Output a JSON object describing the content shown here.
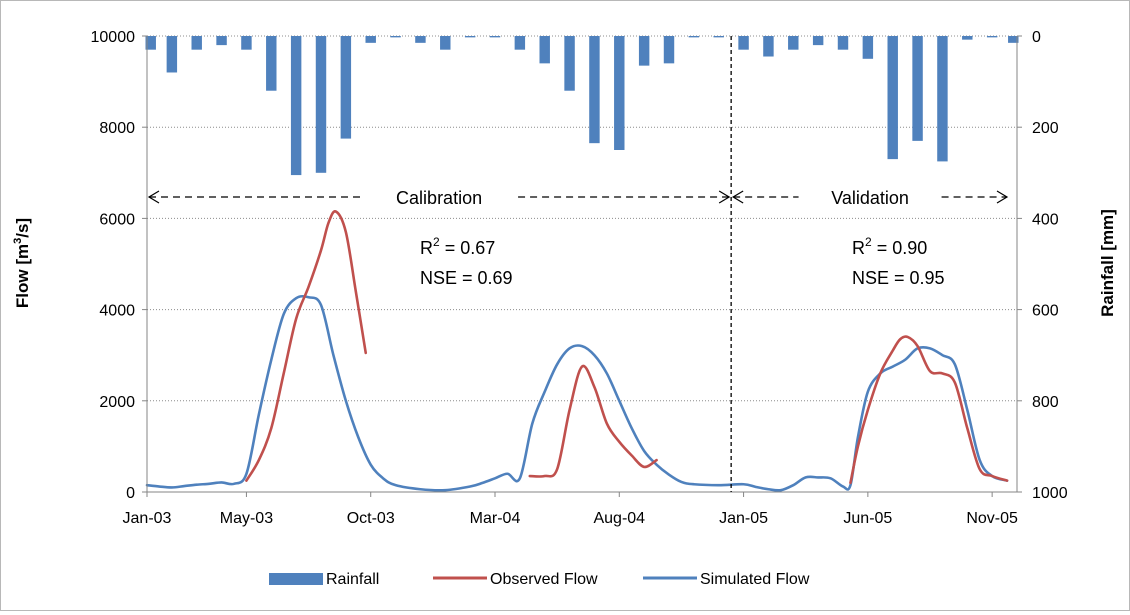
{
  "chart_data": {
    "type": "bar+line",
    "title": "",
    "x_tick_labels": [
      "Jan-03",
      "May-03",
      "Oct-03",
      "Mar-04",
      "Aug-04",
      "Jan-05",
      "Jun-05",
      "Nov-05"
    ],
    "x_tick_months": [
      0,
      4,
      9,
      14,
      19,
      24,
      29,
      34
    ],
    "x_range_months": [
      0,
      35
    ],
    "y_left": {
      "label": "Flow [m",
      "label_sup": "3",
      "label_tail": "/s]",
      "ticks": [
        0,
        2000,
        4000,
        6000,
        8000,
        10000
      ],
      "range": [
        0,
        10000
      ]
    },
    "y_right": {
      "label": "Rainfall [mm]",
      "ticks": [
        0,
        200,
        400,
        600,
        800,
        1000
      ],
      "range": [
        0,
        1000
      ],
      "inverted": true
    },
    "grid": true,
    "legend_position": "bottom",
    "colors": {
      "rainfall": "#4f81bd",
      "observed": "#c0504d",
      "simulated": "#4f81bd"
    },
    "series": [
      {
        "name": "Rainfall",
        "kind": "bar",
        "axis": "right",
        "months": [
          0,
          1,
          2,
          3,
          4,
          5,
          6,
          7,
          8,
          9,
          10,
          11,
          12,
          13,
          14,
          15,
          16,
          17,
          18,
          19,
          20,
          21,
          22,
          23,
          24,
          25,
          26,
          27,
          28,
          29,
          30,
          31,
          32,
          33,
          34,
          35
        ],
        "values": [
          30,
          80,
          30,
          20,
          30,
          120,
          305,
          300,
          225,
          15,
          3,
          15,
          30,
          3,
          3,
          30,
          60,
          120,
          235,
          250,
          65,
          60,
          3,
          3,
          30,
          45,
          30,
          20,
          30,
          50,
          270,
          230,
          275,
          8,
          3,
          15
        ]
      },
      {
        "name": "Observed Flow",
        "kind": "line",
        "axis": "left",
        "segments": [
          {
            "x": [
              4.0,
              4.5,
              5.0,
              5.5,
              6.0,
              6.5,
              7.0,
              7.3,
              7.6,
              8.0,
              8.4,
              8.8
            ],
            "y": [
              250,
              700,
              1400,
              2600,
              3800,
              4500,
              5300,
              5900,
              6150,
              5700,
              4400,
              3050
            ]
          },
          {
            "x": [
              15.4,
              16.0,
              16.5,
              17.0,
              17.5,
              18.0,
              18.5,
              19.0,
              19.5,
              20.0,
              20.5
            ],
            "y": [
              350,
              350,
              500,
              1800,
              2750,
              2300,
              1500,
              1100,
              800,
              550,
              700
            ]
          },
          {
            "x": [
              28.3,
              28.6,
              29.0,
              29.5,
              30.0,
              30.3,
              30.6,
              31.0,
              31.5,
              32.0,
              32.5,
              33.0,
              33.5,
              34.0,
              34.6
            ],
            "y": [
              200,
              1000,
              1800,
              2600,
              3100,
              3350,
              3400,
              3200,
              2650,
              2600,
              2400,
              1400,
              500,
              350,
              250
            ]
          }
        ]
      },
      {
        "name": "Simulated Flow",
        "kind": "line",
        "axis": "left",
        "segments": [
          {
            "x": [
              0,
              0.5,
              1,
              1.5,
              2,
              2.5,
              3,
              3.5,
              4.0,
              4.5,
              5.0,
              5.5,
              6.0,
              6.5,
              7.0,
              7.5,
              8.0,
              8.5,
              9.0,
              9.5,
              10,
              11,
              12,
              13,
              13.5,
              14,
              14.5,
              15,
              15.5,
              16,
              16.5,
              17,
              17.5,
              18,
              18.5,
              19,
              19.5,
              20,
              20.5,
              21,
              21.5,
              22,
              23,
              24,
              24.5,
              25,
              25.5,
              26,
              26.5,
              27,
              27.5,
              28,
              28.3,
              28.6,
              29.0,
              29.5,
              30,
              30.5,
              31,
              31.5,
              32,
              32.5,
              33,
              33.5,
              34,
              34.6
            ],
            "y": [
              150,
              120,
              100,
              130,
              160,
              180,
              210,
              180,
              400,
              1700,
              2900,
              3900,
              4250,
              4270,
              4100,
              3000,
              2000,
              1200,
              600,
              300,
              150,
              60,
              40,
              120,
              200,
              300,
              400,
              300,
              1500,
              2200,
              2800,
              3150,
              3200,
              3000,
              2600,
              2000,
              1400,
              900,
              600,
              380,
              220,
              170,
              150,
              170,
              110,
              60,
              40,
              150,
              320,
              320,
              300,
              120,
              150,
              1200,
              2200,
              2600,
              2750,
              2900,
              3150,
              3150,
              3000,
              2800,
              1800,
              700,
              350,
              250
            ]
          }
        ]
      }
    ],
    "periods": [
      {
        "label": "Calibration",
        "from_month": 0,
        "to_month": 23.5
      },
      {
        "label": "Validation",
        "from_month": 23.5,
        "to_month": 35
      }
    ],
    "divider_month": 23.5,
    "stats": [
      {
        "r2_prefix": "R",
        "r2_sup": "2",
        "r2_value": " = 0.67",
        "nse": "NSE = 0.69"
      },
      {
        "r2_prefix": "R",
        "r2_sup": "2",
        "r2_value": " = 0.90",
        "nse": "NSE = 0.95"
      }
    ]
  }
}
